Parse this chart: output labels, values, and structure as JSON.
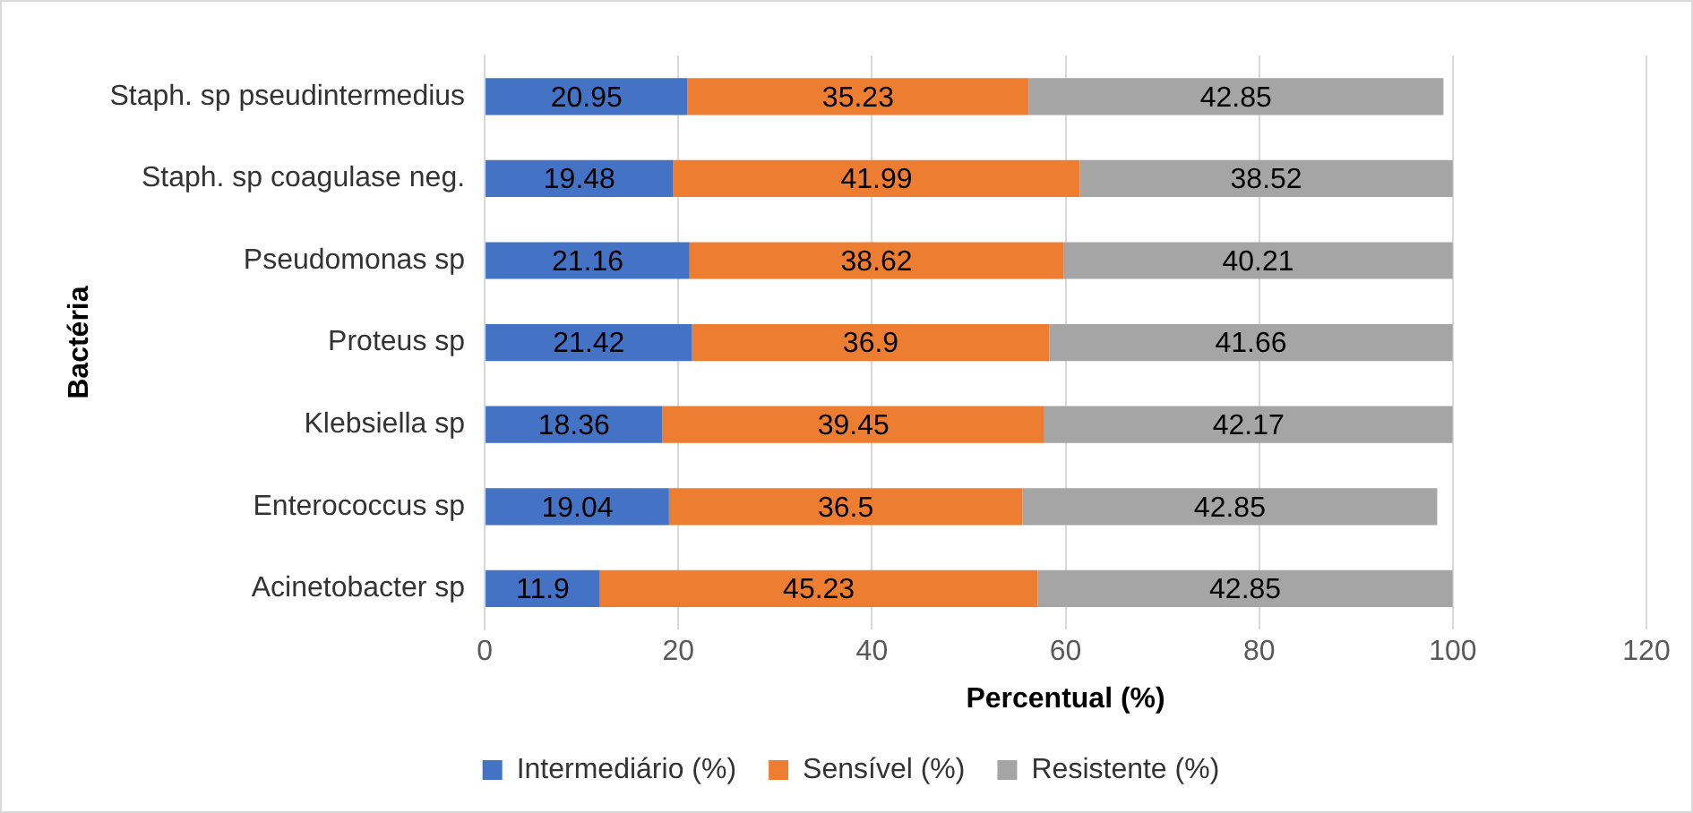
{
  "chart_data": {
    "type": "bar",
    "orientation": "horizontal",
    "stacked": true,
    "xlabel": "Percentual (%)",
    "ylabel": "Bactéria",
    "categories": [
      "Staph. sp pseudintermedius",
      "Staph. sp coagulase neg.",
      "Pseudomonas sp",
      "Proteus sp",
      "Klebsiella sp",
      "Enterococcus sp",
      "Acinetobacter sp"
    ],
    "series": [
      {
        "name": "Intermediário (%)",
        "color": "#4472c4",
        "values": [
          20.95,
          19.48,
          21.16,
          21.42,
          18.36,
          19.04,
          11.9
        ]
      },
      {
        "name": "Sensível (%)",
        "color": "#ed7d31",
        "values": [
          35.23,
          41.99,
          38.62,
          36.9,
          39.45,
          36.5,
          45.23
        ]
      },
      {
        "name": "Resistente (%)",
        "color": "#a5a5a5",
        "values": [
          42.85,
          38.52,
          40.21,
          41.66,
          42.17,
          42.85,
          42.85
        ]
      }
    ],
    "xlim": [
      0,
      120
    ],
    "xticks": [
      0,
      20,
      40,
      60,
      80,
      100,
      120
    ],
    "grid": "x",
    "legend": "bottom",
    "data_labels": true
  }
}
